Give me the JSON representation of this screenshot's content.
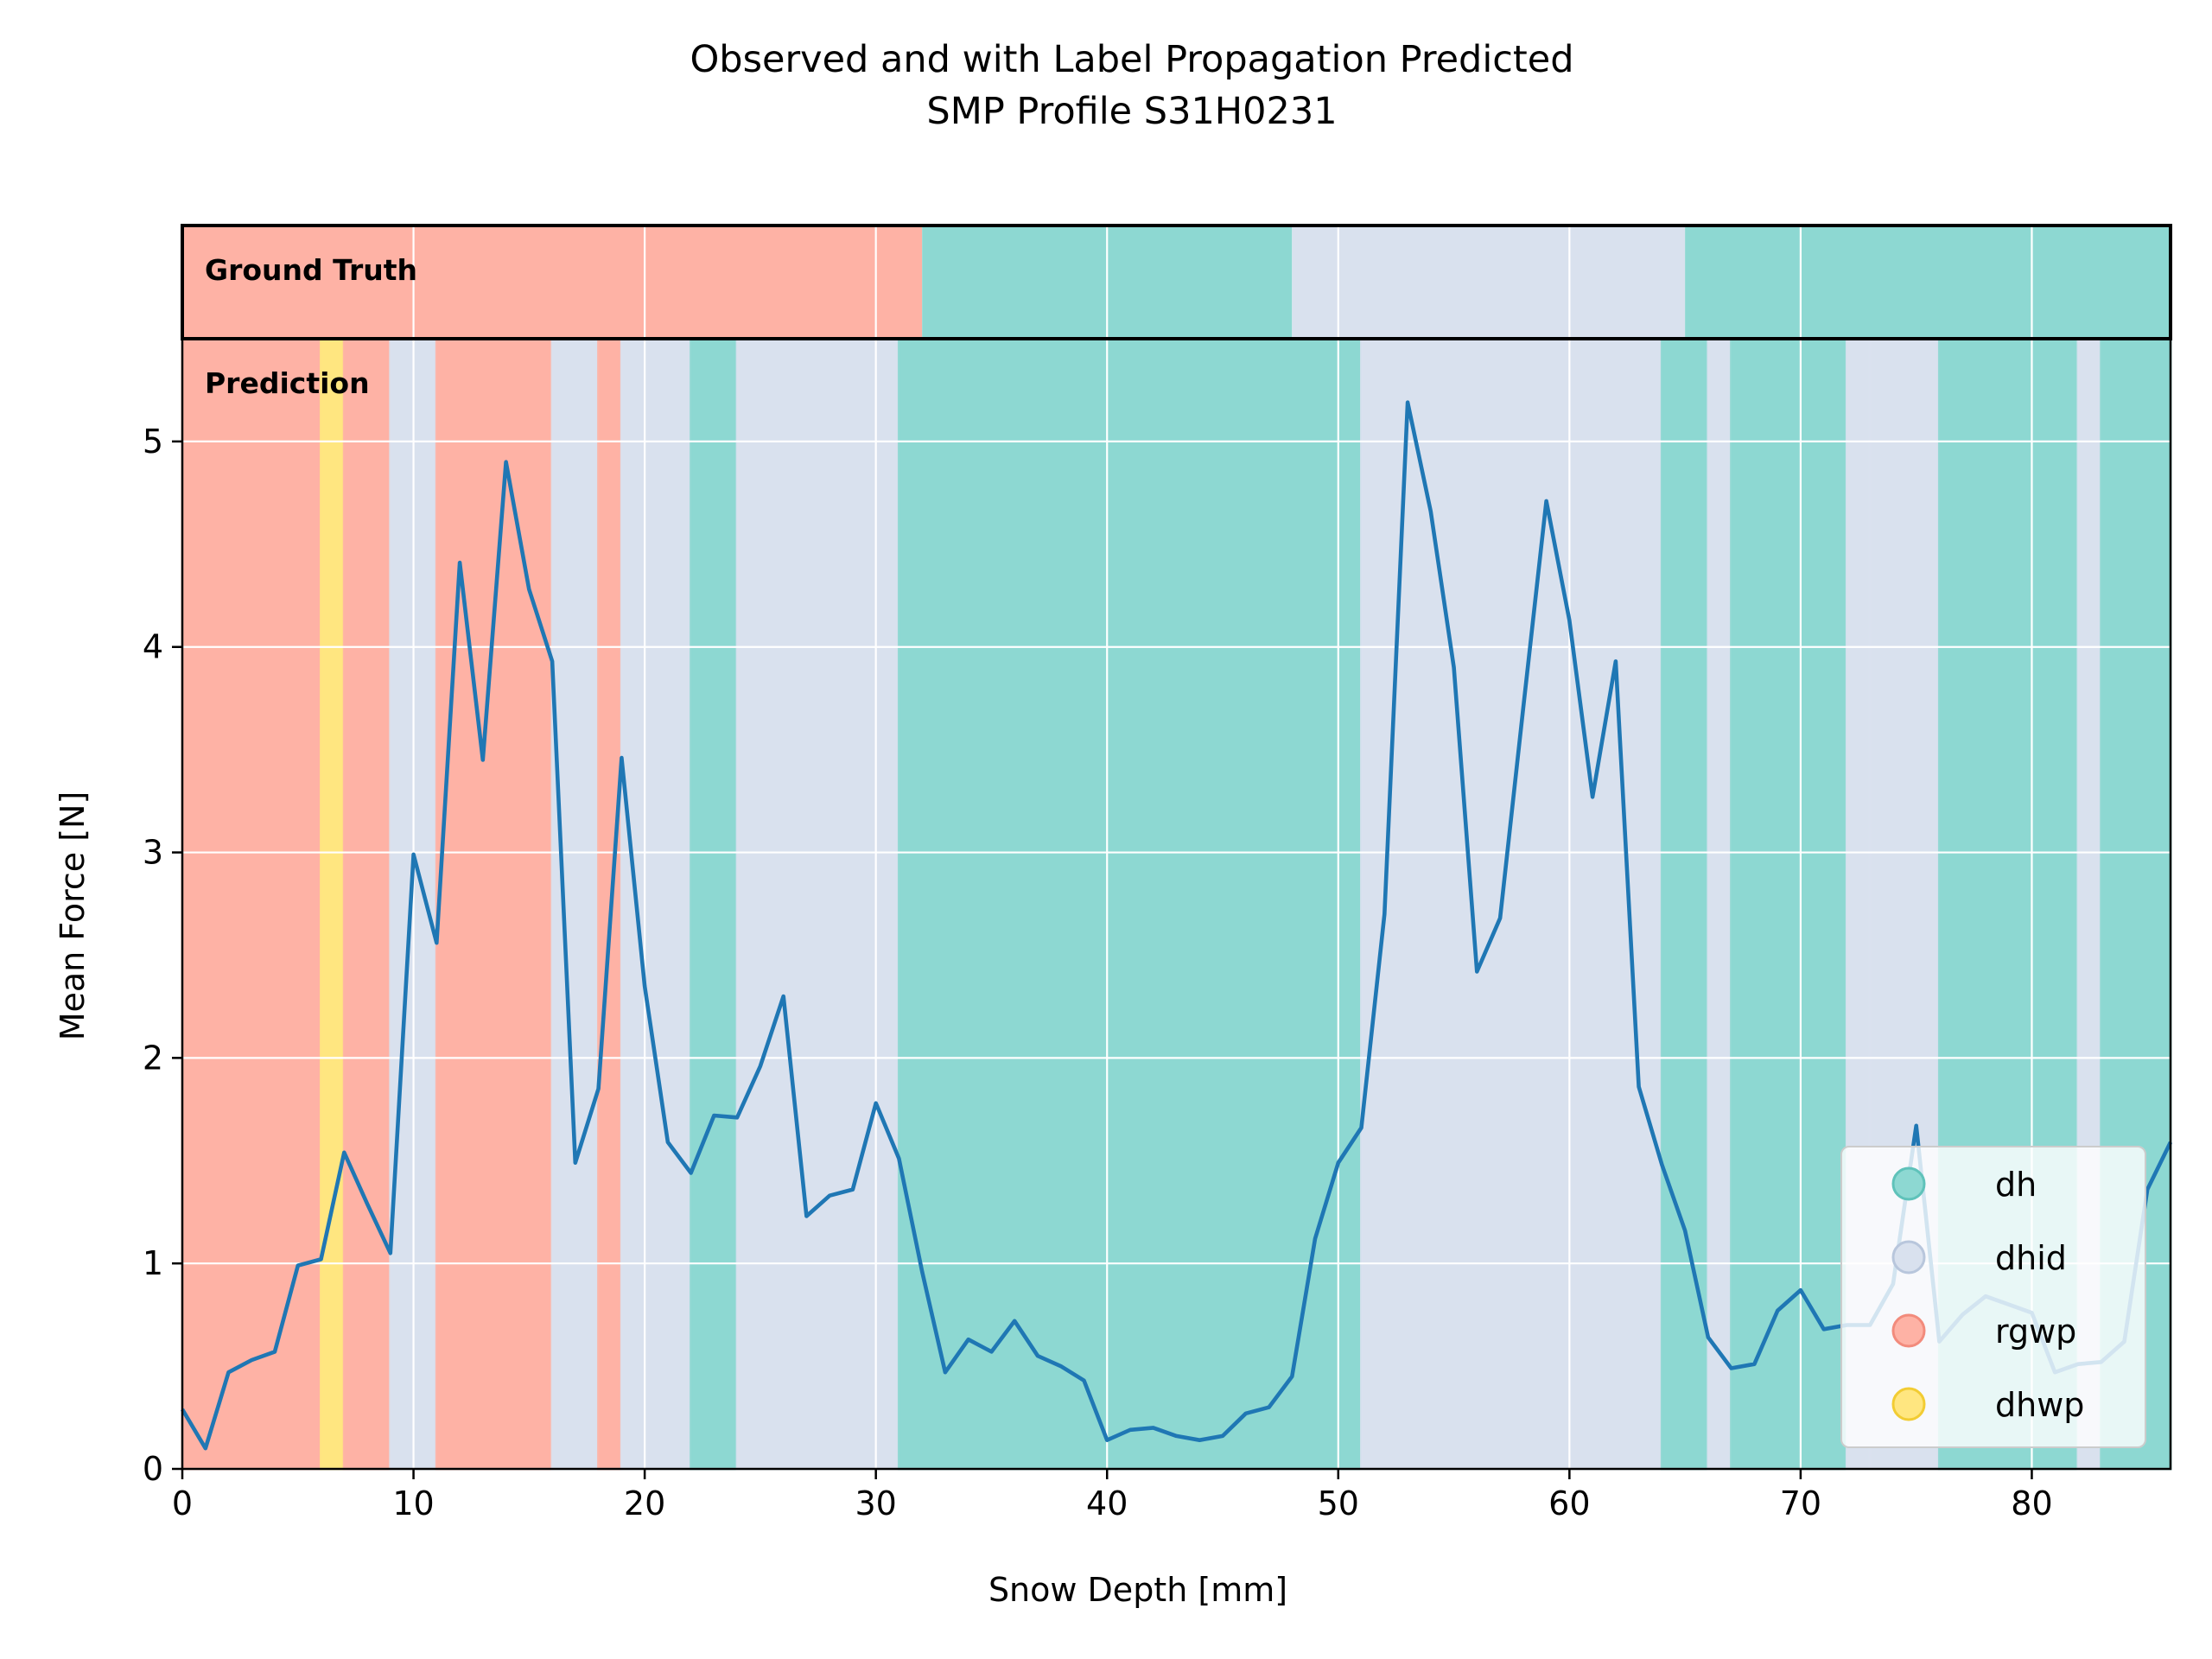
{
  "chart_data": {
    "type": "line",
    "title": [
      "Observed and with Label Propagation Predicted",
      "SMP Profile S31H0231"
    ],
    "xlabel": "Snow Depth [mm]",
    "ylabel": "Mean Force [N]",
    "xlim": [
      0,
      86
    ],
    "ylim": [
      0,
      5.5
    ],
    "xticks": [
      0,
      10,
      20,
      30,
      40,
      50,
      60,
      70,
      80
    ],
    "yticks": [
      0,
      1,
      2,
      3,
      4,
      5
    ],
    "grid": true,
    "legend_position": "bottom-right",
    "band_labels": {
      "ground_truth": "Ground Truth",
      "prediction": "Prediction"
    },
    "classes": [
      {
        "name": "dh",
        "color": "#8dd8d2"
      },
      {
        "name": "dhid",
        "color": "#d9e1ee"
      },
      {
        "name": "rgwp",
        "color": "#feb2a5"
      },
      {
        "name": "dhwp",
        "color": "#ffe680"
      }
    ],
    "ground_truth": [
      {
        "from": 0,
        "to": 32,
        "class": "rgwp"
      },
      {
        "from": 32,
        "to": 48,
        "class": "dh"
      },
      {
        "from": 48,
        "to": 65,
        "class": "dhid"
      },
      {
        "from": 65,
        "to": 86,
        "class": "dh"
      }
    ],
    "prediction": [
      {
        "from": 0,
        "to": 6,
        "class": "rgwp"
      },
      {
        "from": 6,
        "to": 7,
        "class": "dhwp"
      },
      {
        "from": 7,
        "to": 9,
        "class": "rgwp"
      },
      {
        "from": 9,
        "to": 11,
        "class": "dhid"
      },
      {
        "from": 11,
        "to": 16,
        "class": "rgwp"
      },
      {
        "from": 16,
        "to": 18,
        "class": "dhid"
      },
      {
        "from": 18,
        "to": 19,
        "class": "rgwp"
      },
      {
        "from": 19,
        "to": 22,
        "class": "dhid"
      },
      {
        "from": 22,
        "to": 24,
        "class": "dh"
      },
      {
        "from": 24,
        "to": 31,
        "class": "dhid"
      },
      {
        "from": 31,
        "to": 51,
        "class": "dh"
      },
      {
        "from": 51,
        "to": 64,
        "class": "dhid"
      },
      {
        "from": 64,
        "to": 66,
        "class": "dh"
      },
      {
        "from": 66,
        "to": 67,
        "class": "dhid"
      },
      {
        "from": 67,
        "to": 72,
        "class": "dh"
      },
      {
        "from": 72,
        "to": 73,
        "class": "dhid"
      },
      {
        "from": 73,
        "to": 76,
        "class": "dhid"
      },
      {
        "from": 76,
        "to": 82,
        "class": "dh"
      },
      {
        "from": 82,
        "to": 83,
        "class": "dhid"
      },
      {
        "from": 83,
        "to": 86,
        "class": "dh"
      }
    ],
    "series": [
      {
        "color": "#1f77b4",
        "x": [
          0,
          1,
          2,
          3,
          4,
          5,
          6,
          7,
          8,
          9,
          10,
          11,
          12,
          13,
          14,
          15,
          16,
          17,
          18,
          19,
          20,
          21,
          22,
          23,
          24,
          25,
          26,
          27,
          28,
          29,
          30,
          31,
          32,
          33,
          34,
          35,
          36,
          37,
          38,
          39,
          40,
          41,
          42,
          43,
          44,
          45,
          46,
          47,
          48,
          49,
          50,
          51,
          52,
          53,
          54,
          55,
          56,
          57,
          58,
          59,
          60,
          61,
          62,
          63,
          64,
          65,
          66,
          67,
          68,
          69,
          70,
          71,
          72,
          73,
          74,
          75,
          76,
          77,
          78,
          79,
          80,
          81,
          82,
          83,
          84,
          85,
          86
        ],
        "y": [
          0.29,
          0.1,
          0.47,
          0.53,
          0.57,
          0.99,
          1.02,
          1.54,
          1.29,
          1.05,
          2.99,
          2.56,
          4.41,
          3.45,
          4.9,
          4.28,
          3.93,
          1.49,
          1.85,
          3.46,
          2.35,
          1.59,
          1.44,
          1.72,
          1.71,
          1.96,
          2.3,
          1.23,
          1.33,
          1.36,
          1.78,
          1.51,
          0.96,
          0.47,
          0.63,
          0.57,
          0.72,
          0.55,
          0.5,
          0.43,
          0.14,
          0.19,
          0.2,
          0.16,
          0.14,
          0.16,
          0.27,
          0.3,
          0.45,
          1.12,
          1.49,
          1.66,
          2.7,
          5.19,
          4.66,
          3.9,
          2.42,
          2.68,
          3.7,
          4.71,
          4.13,
          3.27,
          3.93,
          1.86,
          1.48,
          1.16,
          0.64,
          0.49,
          0.51,
          0.77,
          0.87,
          0.68,
          0.7,
          0.7,
          0.9,
          1.67,
          0.62,
          0.75,
          0.84,
          0.8,
          0.76,
          0.47,
          0.51,
          0.52,
          0.62,
          1.36,
          1.59
        ]
      }
    ]
  }
}
